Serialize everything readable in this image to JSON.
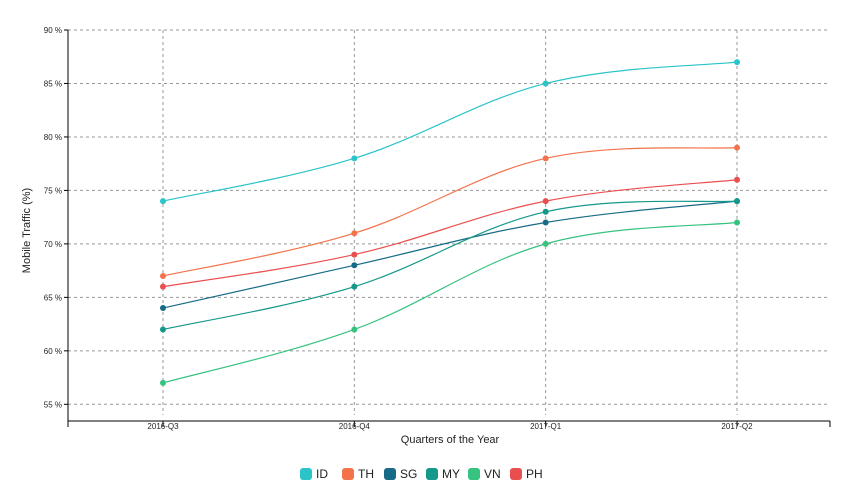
{
  "chart_data": {
    "type": "line",
    "title": "",
    "xlabel": "Quarters of the Year",
    "ylabel": "Mobile Traffic (%)",
    "categories": [
      "2016-Q3",
      "2016-Q4",
      "2017-Q1",
      "2017-Q2"
    ],
    "ylim": [
      54,
      90
    ],
    "yticks": [
      55,
      60,
      65,
      70,
      75,
      80,
      85,
      90
    ],
    "ytick_labels": [
      "55 %",
      "60 %",
      "65 %",
      "70 %",
      "75 %",
      "80 %",
      "85 %",
      "90 %"
    ],
    "grid": true,
    "legend_position": "bottom",
    "series": [
      {
        "name": "ID",
        "color": "#2ac4c9",
        "values": [
          74,
          78,
          85,
          87
        ]
      },
      {
        "name": "TH",
        "color": "#f4734b",
        "values": [
          67,
          71,
          78,
          79
        ]
      },
      {
        "name": "SG",
        "color": "#176b86",
        "values": [
          64,
          68,
          72,
          74
        ]
      },
      {
        "name": "MY",
        "color": "#14988a",
        "values": [
          62,
          66,
          73,
          74
        ]
      },
      {
        "name": "VN",
        "color": "#36c27f",
        "values": [
          57,
          62,
          70,
          72
        ]
      },
      {
        "name": "PH",
        "color": "#ea4f4f",
        "values": [
          66,
          69,
          74,
          76
        ]
      }
    ]
  }
}
